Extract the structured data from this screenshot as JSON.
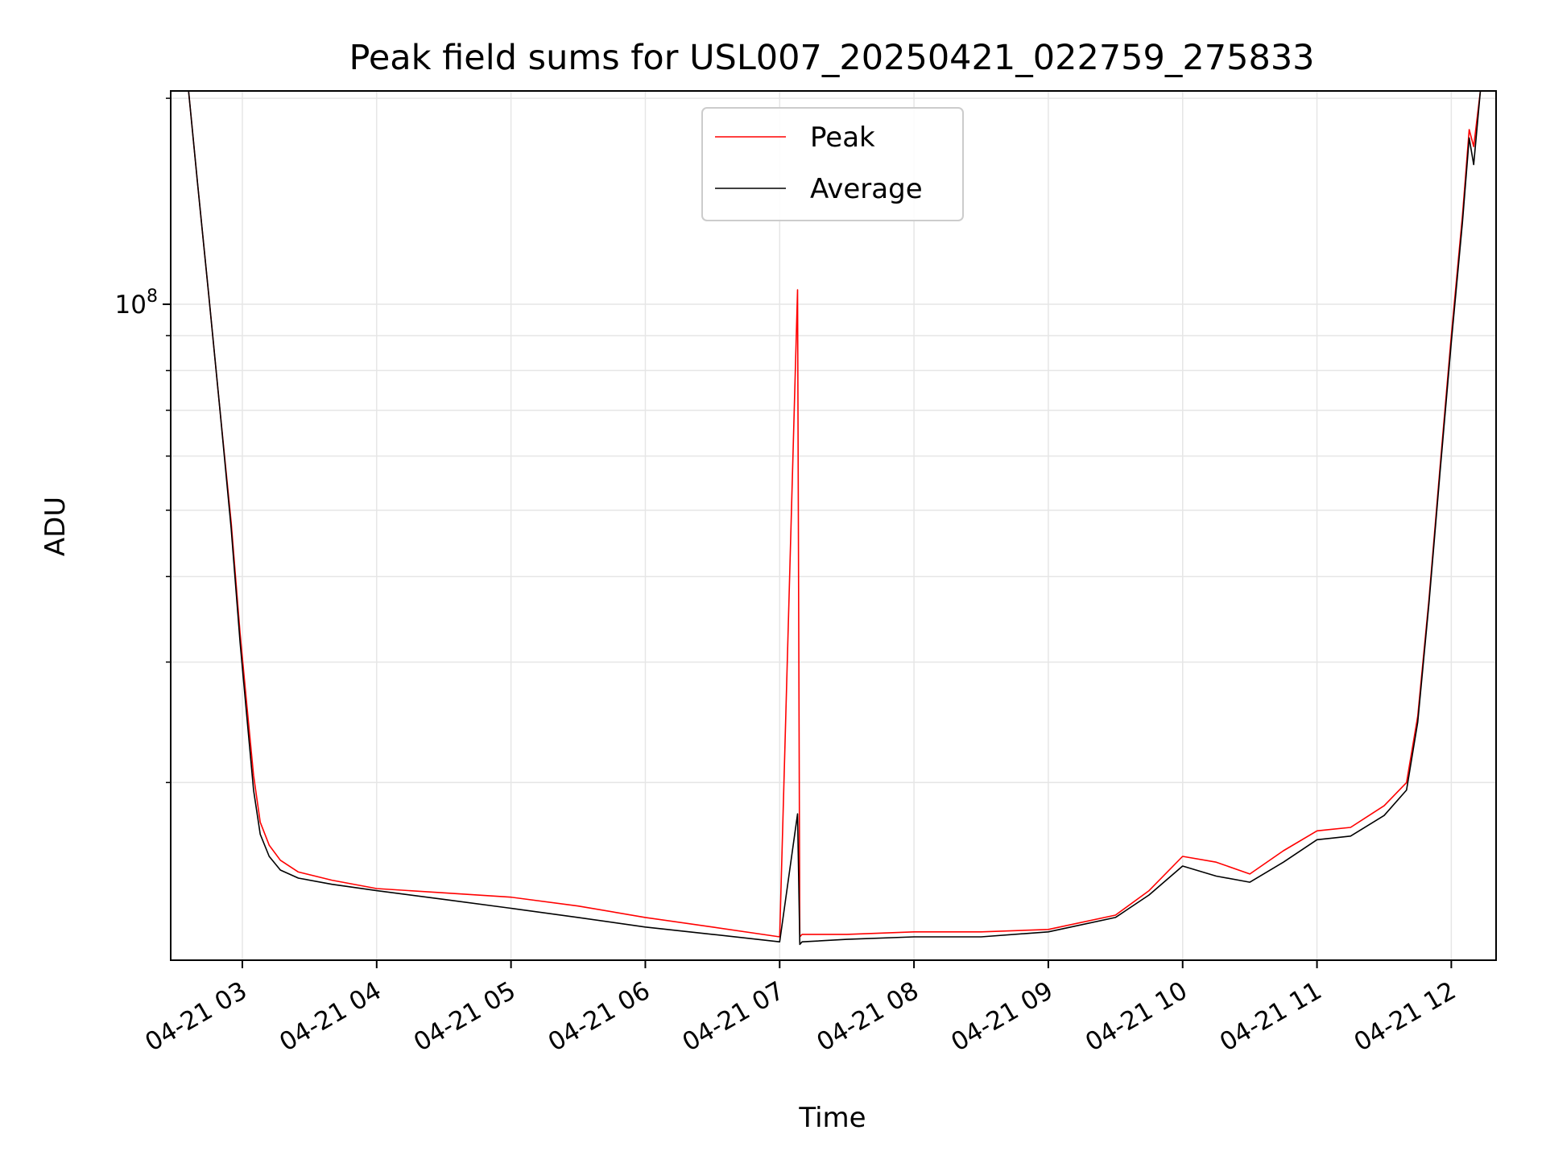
{
  "chart_data": {
    "type": "line",
    "title": "Peak field sums for USL007_20250421_022759_275833",
    "xlabel": "Time",
    "ylabel": "ADU",
    "y_scale": "log",
    "ylim": [
      11000000,
      205000000
    ],
    "xlim": [
      "2025-04-21 02:28",
      "2025-04-21 12:20"
    ],
    "grid": true,
    "legend_position": "upper center",
    "x_ticks": [
      {
        "t": "2025-04-21 03:00",
        "label": "04-21 03"
      },
      {
        "t": "2025-04-21 04:00",
        "label": "04-21 04"
      },
      {
        "t": "2025-04-21 05:00",
        "label": "04-21 05"
      },
      {
        "t": "2025-04-21 06:00",
        "label": "04-21 06"
      },
      {
        "t": "2025-04-21 07:00",
        "label": "04-21 07"
      },
      {
        "t": "2025-04-21 08:00",
        "label": "04-21 08"
      },
      {
        "t": "2025-04-21 09:00",
        "label": "04-21 09"
      },
      {
        "t": "2025-04-21 10:00",
        "label": "04-21 10"
      },
      {
        "t": "2025-04-21 11:00",
        "label": "04-21 11"
      },
      {
        "t": "2025-04-21 12:00",
        "label": "04-21 12"
      }
    ],
    "y_major_ticks": [
      {
        "value": 100000000,
        "base": "10",
        "exp": "8"
      }
    ],
    "y_minor_ticks": [
      20000000,
      30000000,
      40000000,
      50000000,
      60000000,
      70000000,
      80000000,
      90000000,
      200000000
    ],
    "colors": {
      "Peak": "#ff0000",
      "Average": "#000000"
    },
    "series": [
      {
        "name": "Peak",
        "x": [
          "2025-04-21 02:28",
          "2025-04-21 02:36",
          "2025-04-21 02:40",
          "2025-04-21 02:45",
          "2025-04-21 02:50",
          "2025-04-21 02:55",
          "2025-04-21 02:59",
          "2025-04-21 03:02",
          "2025-04-21 03:05",
          "2025-04-21 03:08",
          "2025-04-21 03:12",
          "2025-04-21 03:17",
          "2025-04-21 03:25",
          "2025-04-21 03:40",
          "2025-04-21 04:00",
          "2025-04-21 04:30",
          "2025-04-21 05:00",
          "2025-04-21 05:30",
          "2025-04-21 06:00",
          "2025-04-21 06:30",
          "2025-04-21 07:00",
          "2025-04-21 07:08",
          "2025-04-21 07:09",
          "2025-04-21 07:10",
          "2025-04-21 07:30",
          "2025-04-21 08:00",
          "2025-04-21 08:30",
          "2025-04-21 09:00",
          "2025-04-21 09:30",
          "2025-04-21 09:45",
          "2025-04-21 10:00",
          "2025-04-21 10:15",
          "2025-04-21 10:30",
          "2025-04-21 10:45",
          "2025-04-21 11:00",
          "2025-04-21 11:15",
          "2025-04-21 11:30",
          "2025-04-21 11:40",
          "2025-04-21 11:45",
          "2025-04-21 11:50",
          "2025-04-21 11:55",
          "2025-04-21 12:00",
          "2025-04-21 12:05",
          "2025-04-21 12:08",
          "2025-04-21 12:10",
          "2025-04-21 12:13"
        ],
        "y": [
          205000000,
          205000000,
          150000000,
          103000000,
          70000000,
          48000000,
          33000000,
          26000000,
          20500000,
          17500000,
          16200000,
          15400000,
          14800000,
          14400000,
          14000000,
          13800000,
          13600000,
          13200000,
          12700000,
          12300000,
          11900000,
          105000000,
          11900000,
          12000000,
          12000000,
          12100000,
          12100000,
          12200000,
          12800000,
          13900000,
          15600000,
          15300000,
          14700000,
          15900000,
          17000000,
          17200000,
          18500000,
          20000000,
          25000000,
          37000000,
          58000000,
          90000000,
          135000000,
          180000000,
          170000000,
          205000000
        ]
      },
      {
        "name": "Average",
        "x": [
          "2025-04-21 02:28",
          "2025-04-21 02:36",
          "2025-04-21 02:40",
          "2025-04-21 02:45",
          "2025-04-21 02:50",
          "2025-04-21 02:55",
          "2025-04-21 02:59",
          "2025-04-21 03:02",
          "2025-04-21 03:05",
          "2025-04-21 03:08",
          "2025-04-21 03:12",
          "2025-04-21 03:17",
          "2025-04-21 03:25",
          "2025-04-21 03:40",
          "2025-04-21 04:00",
          "2025-04-21 04:30",
          "2025-04-21 05:00",
          "2025-04-21 05:30",
          "2025-04-21 06:00",
          "2025-04-21 06:30",
          "2025-04-21 07:00",
          "2025-04-21 07:08",
          "2025-04-21 07:09",
          "2025-04-21 07:10",
          "2025-04-21 07:30",
          "2025-04-21 08:00",
          "2025-04-21 08:30",
          "2025-04-21 09:00",
          "2025-04-21 09:30",
          "2025-04-21 09:45",
          "2025-04-21 10:00",
          "2025-04-21 10:15",
          "2025-04-21 10:30",
          "2025-04-21 10:45",
          "2025-04-21 11:00",
          "2025-04-21 11:15",
          "2025-04-21 11:30",
          "2025-04-21 11:40",
          "2025-04-21 11:45",
          "2025-04-21 11:50",
          "2025-04-21 11:55",
          "2025-04-21 12:00",
          "2025-04-21 12:05",
          "2025-04-21 12:08",
          "2025-04-21 12:10",
          "2025-04-21 12:13"
        ],
        "y": [
          205000000,
          205000000,
          150000000,
          103000000,
          70000000,
          47000000,
          32000000,
          25000000,
          19500000,
          16800000,
          15600000,
          14900000,
          14500000,
          14200000,
          13900000,
          13500000,
          13100000,
          12700000,
          12300000,
          12000000,
          11700000,
          18000000,
          11600000,
          11700000,
          11800000,
          11900000,
          11900000,
          12100000,
          12700000,
          13700000,
          15100000,
          14600000,
          14300000,
          15300000,
          16500000,
          16700000,
          17900000,
          19500000,
          24500000,
          36500000,
          57000000,
          88000000,
          132000000,
          175000000,
          160000000,
          205000000
        ]
      }
    ]
  }
}
